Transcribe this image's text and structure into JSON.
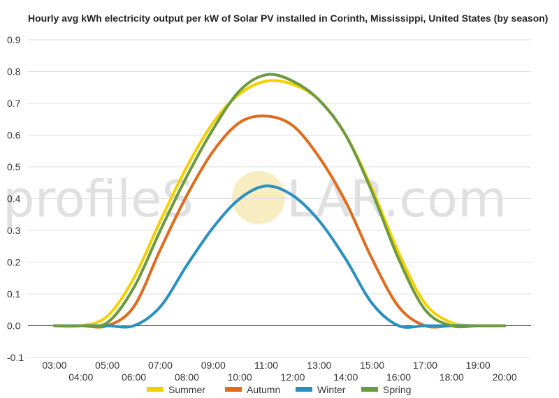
{
  "watermark": {
    "left": "profileS",
    "right": "LAR.com"
  },
  "chart_data": {
    "type": "line",
    "title": "Hourly avg kWh electricity output per kW of Solar PV installed in Corinth, Mississippi, United States (by season)",
    "xlabel": "",
    "ylabel": "",
    "ylim": [
      -0.1,
      0.9
    ],
    "yticks": [
      "-0.1",
      "0.0",
      "0.1",
      "0.2",
      "0.3",
      "0.4",
      "0.5",
      "0.6",
      "0.7",
      "0.8",
      "0.9"
    ],
    "xticks_upper": [
      "03:00",
      "05:00",
      "07:00",
      "09:00",
      "11:00",
      "13:00",
      "15:00",
      "17:00",
      "19:00"
    ],
    "xticks_lower": [
      "04:00",
      "06:00",
      "08:00",
      "10:00",
      "12:00",
      "14:00",
      "16:00",
      "18:00",
      "20:00"
    ],
    "x": [
      "03:00",
      "04:00",
      "05:00",
      "06:00",
      "07:00",
      "08:00",
      "09:00",
      "10:00",
      "11:00",
      "12:00",
      "13:00",
      "14:00",
      "15:00",
      "16:00",
      "17:00",
      "18:00",
      "19:00",
      "20:00"
    ],
    "grid": true,
    "legend_position": "bottom",
    "series": [
      {
        "name": "Summer",
        "color": "#f5d000",
        "values": [
          0.0,
          0.0,
          0.03,
          0.15,
          0.33,
          0.5,
          0.64,
          0.73,
          0.77,
          0.76,
          0.71,
          0.6,
          0.43,
          0.23,
          0.07,
          0.01,
          0.0,
          0.0
        ]
      },
      {
        "name": "Autumn",
        "color": "#e06b1b",
        "values": [
          0.0,
          0.0,
          0.0,
          0.06,
          0.24,
          0.41,
          0.55,
          0.64,
          0.66,
          0.63,
          0.53,
          0.39,
          0.21,
          0.06,
          0.0,
          0.0,
          0.0,
          0.0
        ]
      },
      {
        "name": "Winter",
        "color": "#2a8fc1",
        "values": [
          0.0,
          0.0,
          0.0,
          0.0,
          0.06,
          0.19,
          0.31,
          0.4,
          0.44,
          0.41,
          0.33,
          0.21,
          0.07,
          0.0,
          0.0,
          0.0,
          0.0,
          0.0
        ]
      },
      {
        "name": "Spring",
        "color": "#6c9a3f",
        "values": [
          0.0,
          0.0,
          0.01,
          0.12,
          0.3,
          0.47,
          0.62,
          0.74,
          0.79,
          0.77,
          0.71,
          0.6,
          0.42,
          0.21,
          0.05,
          0.0,
          0.0,
          0.0
        ]
      }
    ]
  }
}
